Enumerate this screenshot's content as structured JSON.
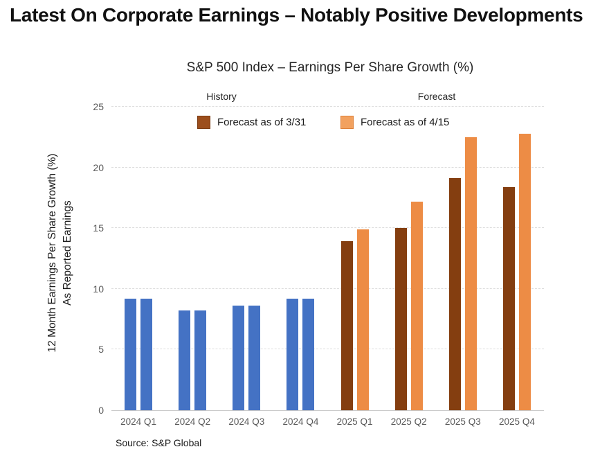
{
  "page": {
    "title": "Latest On Corporate Earnings – Notably Positive Developments",
    "source": "Source: S&P Global"
  },
  "chart": {
    "title": "S&P 500 Index – Earnings Per Share Growth (%)",
    "region_labels": {
      "history": "History",
      "forecast": "Forecast"
    },
    "y_axis_title_line1": "12 Month Earnings Per Share Growth (%)",
    "y_axis_title_line2": "As Reported Earnings",
    "legend": [
      {
        "label": "Forecast as of 3/31",
        "fill": "#9c4e1c",
        "border": "#7b3a10"
      },
      {
        "label": "Forecast as of 4/15",
        "fill": "#f2a15f",
        "border": "#dd8038"
      }
    ],
    "colors": {
      "history_bar": "#4472c4",
      "forecast_331_bar": "#843e10",
      "forecast_415_bar": "#ed8c45",
      "gridline": "#dcdcdc",
      "axis_line": "#c9c9c9",
      "tick_text": "#595959"
    }
  },
  "chart_data": {
    "type": "bar",
    "title": "S&P 500 Index – Earnings Per Share Growth (%)",
    "categories": [
      "2024 Q1",
      "2024 Q2",
      "2024 Q3",
      "2024 Q4",
      "2025 Q1",
      "2025 Q2",
      "2025 Q3",
      "2025 Q4"
    ],
    "series": [
      {
        "name": "Forecast as of 3/31",
        "values": [
          9.2,
          8.2,
          8.6,
          9.2,
          13.9,
          15.0,
          19.1,
          18.4
        ]
      },
      {
        "name": "Forecast as of 4/15",
        "values": [
          9.2,
          8.2,
          8.6,
          9.2,
          14.9,
          17.2,
          22.5,
          22.8
        ]
      }
    ],
    "history_categories_count": 4,
    "note": "Bars for 2024 quarters are history (reported earnings, both series equal, shown in blue); 2025 quarters are forecasts shown in brown (3/31) and orange (4/15)",
    "annotations": [
      "History",
      "Forecast"
    ],
    "ylabel": "12 Month Earnings Per Share Growth (%) As Reported Earnings",
    "xlabel": "",
    "yticks": [
      0,
      5,
      10,
      15,
      20,
      25
    ],
    "ylim": [
      0,
      25
    ],
    "grid": "horizontal dashed",
    "legend_position": "top",
    "source": "Source: S&P Global"
  }
}
